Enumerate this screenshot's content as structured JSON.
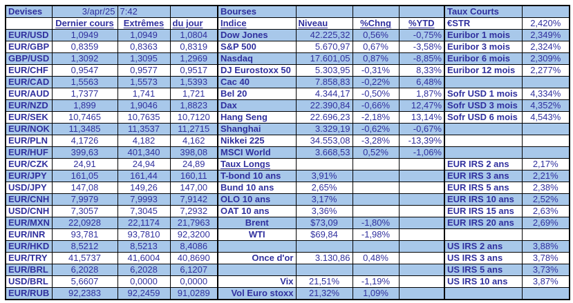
{
  "colors": {
    "row_highlight": "#A8C8EA",
    "text": "#30309E",
    "border": "#000000",
    "background": "#FFFFFF"
  },
  "header": {
    "devises_title": "Devises",
    "date": "3/apr/25",
    "time": "7:42",
    "bourses_title": "Bourses",
    "taux_courts_title": "Taux Courts"
  },
  "devises": {
    "columns": {
      "last": "Dernier cours",
      "extremes": "Extrêmes",
      "day": "du jour"
    },
    "rows": [
      {
        "pair": "EUR/USD",
        "last": "1,0949",
        "extremes": "1,0949",
        "day": "1,0804"
      },
      {
        "pair": "EUR/GBP",
        "last": "0,8359",
        "extremes": "0,8363",
        "day": "0,8319"
      },
      {
        "pair": "GBP/USD",
        "last": "1,3092",
        "extremes": "1,3095",
        "day": "1,2969"
      },
      {
        "pair": "EUR/CHF",
        "last": "0,9547",
        "extremes": "0,9577",
        "day": "0,9517"
      },
      {
        "pair": "EUR/CAD",
        "last": "1,5563",
        "extremes": "1,5573",
        "day": "1,5393"
      },
      {
        "pair": "EUR/AUD",
        "last": "1,7377",
        "extremes": "1,741",
        "day": "1,721"
      },
      {
        "pair": "EUR/NZD",
        "last": "1,899",
        "extremes": "1,9046",
        "day": "1,8823"
      },
      {
        "pair": "EUR/SEK",
        "last": "10,7465",
        "extremes": "10,7635",
        "day": "10,7120"
      },
      {
        "pair": "EUR/NOK",
        "last": "11,3485",
        "extremes": "11,3537",
        "day": "11,2715"
      },
      {
        "pair": "EUR/PLN",
        "last": "4,1726",
        "extremes": "4,182",
        "day": "4,162"
      },
      {
        "pair": "EUR/HUF",
        "last": "399,63",
        "extremes": "401,340",
        "day": "398,08"
      },
      {
        "pair": "EUR/CZK",
        "last": "24,91",
        "extremes": "24,94",
        "day": "24,89"
      },
      {
        "pair": "EUR/JPY",
        "last": "161,05",
        "extremes": "161,44",
        "day": "160,11"
      },
      {
        "pair": "USD/JPY",
        "last": "147,08",
        "extremes": "149,26",
        "day": "147,00"
      },
      {
        "pair": "EUR/CNH",
        "last": "7,9979",
        "extremes": "7,9993",
        "day": "7,9142"
      },
      {
        "pair": "USD/CNH",
        "last": "7,3057",
        "extremes": "7,3045",
        "day": "7,2932"
      },
      {
        "pair": "EUR/MXN",
        "last": "22,0928",
        "extremes": "22,1174",
        "day": "21,7963"
      },
      {
        "pair": "EUR/INR",
        "last": "93,781",
        "extremes": "93,7810",
        "day": "92,3200"
      },
      {
        "pair": "EUR/HKD",
        "last": "8,5212",
        "extremes": "8,5213",
        "day": "8,4086"
      },
      {
        "pair": "EUR/TRY",
        "last": "41,5737",
        "extremes": "41,6004",
        "day": "40,8690"
      },
      {
        "pair": "EUR/BRL",
        "last": "6,2028",
        "extremes": "6,2028",
        "day": "6,1207"
      },
      {
        "pair": "USD/BRL",
        "last": "5,6607",
        "extremes": "0,0000",
        "day": "0,0000"
      },
      {
        "pair": "EUR/RUB",
        "last": "92,2383",
        "extremes": "92,2459",
        "day": "91,0289"
      }
    ]
  },
  "bourses": {
    "columns": {
      "indice": "Indice",
      "niveau": "Niveau",
      "chng": "%Chng",
      "ytd": "%YTD"
    },
    "rows": [
      {
        "label": "Dow Jones",
        "niveau": "42.225,32",
        "chng": "0,56%",
        "ytd": "-0,75%"
      },
      {
        "label": "S&P 500",
        "niveau": "5.670,97",
        "chng": "0,67%",
        "ytd": "-3,58%"
      },
      {
        "label": "Nasdaq",
        "niveau": "17.601,05",
        "chng": "0,87%",
        "ytd": "-8,85%"
      },
      {
        "label": "DJ Eurostoxx 50",
        "niveau": "5.303,95",
        "chng": "-0,31%",
        "ytd": "8,33%"
      },
      {
        "label": "Cac 40",
        "niveau": "7.858,83",
        "chng": "-0,22%",
        "ytd": "6,48%"
      },
      {
        "label": "Bel 20",
        "niveau": "4.344,17",
        "chng": "-0,50%",
        "ytd": "1,87%"
      },
      {
        "label": "Dax",
        "niveau": "22.390,84",
        "chng": "-0,66%",
        "ytd": "12,47%"
      },
      {
        "label": "Hang Seng",
        "niveau": "22.696,23",
        "chng": "-2,18%",
        "ytd": "13,14%"
      },
      {
        "label": "Shanghai",
        "niveau": "3.329,19",
        "chng": "-0,62%",
        "ytd": "-0,67%"
      },
      {
        "label": "Nikkei 225",
        "niveau": "34.553,08",
        "chng": "-3,28%",
        "ytd": "-13,39%"
      },
      {
        "label": "MSCI World",
        "niveau": "3.668,53",
        "chng": "0,52%",
        "ytd": "-1,06%"
      },
      {
        "label": "Taux Longs",
        "niveau": "",
        "chng": "",
        "ytd": ""
      },
      {
        "label": "T-bond 10 ans",
        "niveau": "3,91%",
        "chng": "",
        "ytd": ""
      },
      {
        "label": "Bund 10 ans",
        "niveau": "2,65%",
        "chng": "",
        "ytd": ""
      },
      {
        "label": "OLO 10 ans",
        "niveau": "3,17%",
        "chng": "",
        "ytd": ""
      },
      {
        "label": "OAT 10 ans",
        "niveau": "3,36%",
        "chng": "",
        "ytd": ""
      },
      {
        "label": "Brent",
        "niveau": "$73,09",
        "chng": "-1,80%",
        "ytd": ""
      },
      {
        "label": "WTI",
        "niveau": "$69,84",
        "chng": "-1,98%",
        "ytd": ""
      },
      {
        "label": "",
        "niveau": "",
        "chng": "",
        "ytd": ""
      },
      {
        "label": "Once d'or",
        "niveau": "3.130,86",
        "chng": "0,48%",
        "ytd": ""
      },
      {
        "label": "",
        "niveau": "",
        "chng": "",
        "ytd": ""
      },
      {
        "label": "Vix",
        "niveau": "21,51%",
        "chng": "-1,19%",
        "ytd": ""
      },
      {
        "label": "Vol Euro stoxx",
        "niveau": "21,32%",
        "chng": "1,09%",
        "ytd": ""
      }
    ]
  },
  "taux": {
    "rows": [
      {
        "label": "€STR",
        "value": "2,420%"
      },
      {
        "label": "Euribor 1 mois",
        "value": "2,349%"
      },
      {
        "label": "Euribor 3 mois",
        "value": "2,324%"
      },
      {
        "label": "Euribor 6 mois",
        "value": "2,309%"
      },
      {
        "label": "Euribor 12 mois",
        "value": "2,277%"
      },
      {
        "label": "",
        "value": ""
      },
      {
        "label": "Sofr USD 1 mois",
        "value": "4,334%"
      },
      {
        "label": "Sofr USD 3 mois",
        "value": "4,352%"
      },
      {
        "label": "Sofr USD 6 mois",
        "value": "4,543%"
      },
      {
        "label": "",
        "value": ""
      },
      {
        "label": "",
        "value": ""
      },
      {
        "label": "",
        "value": ""
      },
      {
        "label": "EUR IRS 2 ans",
        "value": "2,17%"
      },
      {
        "label": "EUR IRS 3 ans",
        "value": "2,21%"
      },
      {
        "label": "EUR IRS 5 ans",
        "value": "2,38%"
      },
      {
        "label": "EUR IRS 10 ans",
        "value": "2,52%"
      },
      {
        "label": "EUR IRS 15 ans",
        "value": "2,63%"
      },
      {
        "label": "EUR IRS 20 ans",
        "value": "2,69%"
      },
      {
        "label": "",
        "value": ""
      },
      {
        "label": "US IRS 2 ans",
        "value": "3,88%"
      },
      {
        "label": "US IRS 3 ans",
        "value": "3,78%"
      },
      {
        "label": "US IRS 5 ans",
        "value": "3,73%"
      },
      {
        "label": "US IRS 10 ans",
        "value": "3,87%"
      },
      {
        "label": "",
        "value": ""
      }
    ]
  }
}
